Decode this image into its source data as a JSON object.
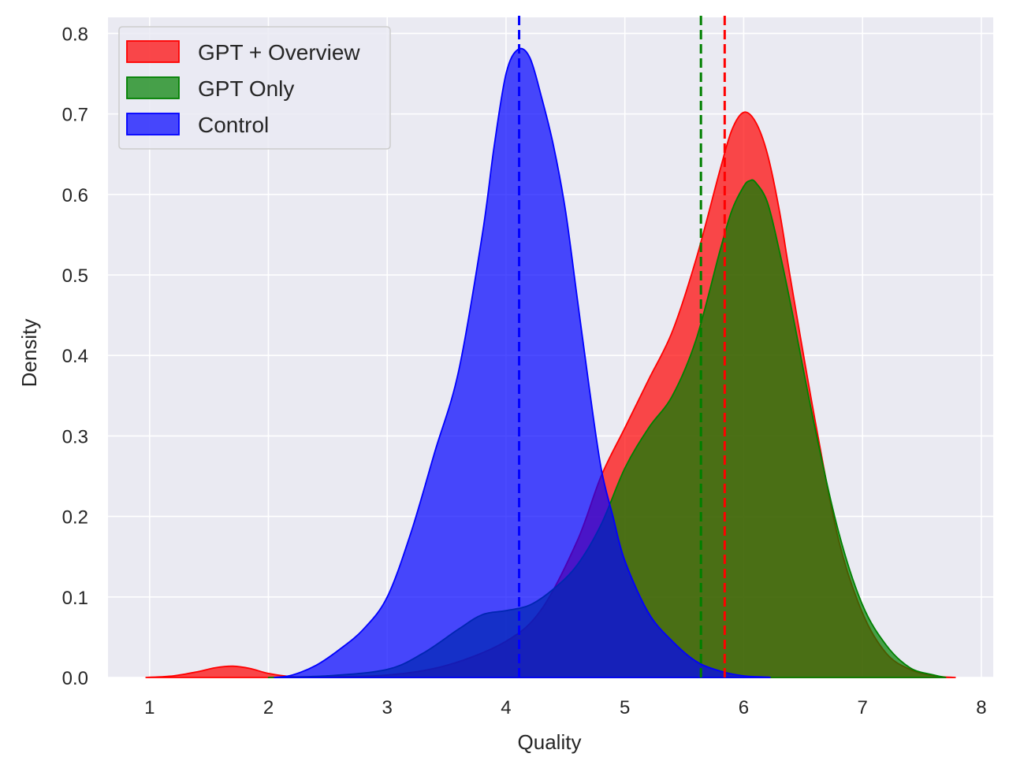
{
  "chart_data": {
    "type": "area",
    "title": "",
    "xlabel": "Quality",
    "ylabel": "Density",
    "xlim": [
      0.65,
      8.1
    ],
    "ylim": [
      0,
      0.82
    ],
    "x_ticks": [
      "1",
      "2",
      "3",
      "4",
      "5",
      "6",
      "7",
      "8"
    ],
    "y_ticks": [
      "0.0",
      "0.1",
      "0.2",
      "0.3",
      "0.4",
      "0.5",
      "0.6",
      "0.7",
      "0.8"
    ],
    "grid": true,
    "legend_position": "top-left",
    "background_color": "#eaeaf2",
    "series": [
      {
        "name": "GPT + Overview",
        "color": "#ff0000",
        "mean": 5.84,
        "x": [
          0.97,
          1.2,
          1.4,
          1.55,
          1.7,
          1.85,
          2.0,
          2.2,
          2.5,
          3.0,
          3.5,
          4.0,
          4.3,
          4.6,
          4.8,
          5.0,
          5.2,
          5.4,
          5.6,
          5.8,
          5.9,
          6.0,
          6.1,
          6.2,
          6.3,
          6.4,
          6.6,
          6.8,
          7.0,
          7.2,
          7.4,
          7.6,
          7.78
        ],
        "y": [
          0.0,
          0.002,
          0.007,
          0.012,
          0.014,
          0.011,
          0.005,
          0.001,
          0.001,
          0.003,
          0.015,
          0.045,
          0.085,
          0.17,
          0.25,
          0.31,
          0.37,
          0.43,
          0.52,
          0.63,
          0.68,
          0.702,
          0.69,
          0.65,
          0.58,
          0.49,
          0.32,
          0.17,
          0.08,
          0.03,
          0.01,
          0.002,
          0.0
        ]
      },
      {
        "name": "GPT Only",
        "color": "#008000",
        "mean": 5.64,
        "x": [
          2.0,
          2.5,
          3.0,
          3.3,
          3.6,
          3.8,
          4.0,
          4.2,
          4.4,
          4.6,
          4.8,
          5.0,
          5.2,
          5.4,
          5.6,
          5.8,
          5.9,
          6.0,
          6.05,
          6.1,
          6.2,
          6.3,
          6.4,
          6.6,
          6.8,
          7.0,
          7.2,
          7.4,
          7.6,
          7.7
        ],
        "y": [
          0.0,
          0.002,
          0.01,
          0.03,
          0.06,
          0.078,
          0.083,
          0.09,
          0.11,
          0.14,
          0.19,
          0.26,
          0.31,
          0.35,
          0.42,
          0.53,
          0.58,
          0.61,
          0.617,
          0.615,
          0.59,
          0.53,
          0.46,
          0.31,
          0.18,
          0.09,
          0.04,
          0.012,
          0.003,
          0.0
        ]
      },
      {
        "name": "Control",
        "color": "#0000ff",
        "mean": 4.11,
        "x": [
          2.05,
          2.2,
          2.4,
          2.6,
          2.8,
          3.0,
          3.2,
          3.4,
          3.6,
          3.8,
          3.9,
          4.0,
          4.1,
          4.2,
          4.3,
          4.4,
          4.5,
          4.6,
          4.7,
          4.8,
          4.9,
          5.0,
          5.2,
          5.4,
          5.6,
          5.8,
          6.0,
          6.2,
          6.22
        ],
        "y": [
          0.0,
          0.003,
          0.015,
          0.035,
          0.06,
          0.1,
          0.18,
          0.28,
          0.38,
          0.55,
          0.66,
          0.75,
          0.78,
          0.77,
          0.72,
          0.66,
          0.58,
          0.47,
          0.36,
          0.26,
          0.2,
          0.145,
          0.08,
          0.045,
          0.02,
          0.008,
          0.002,
          0.0005,
          0.0
        ]
      }
    ]
  }
}
